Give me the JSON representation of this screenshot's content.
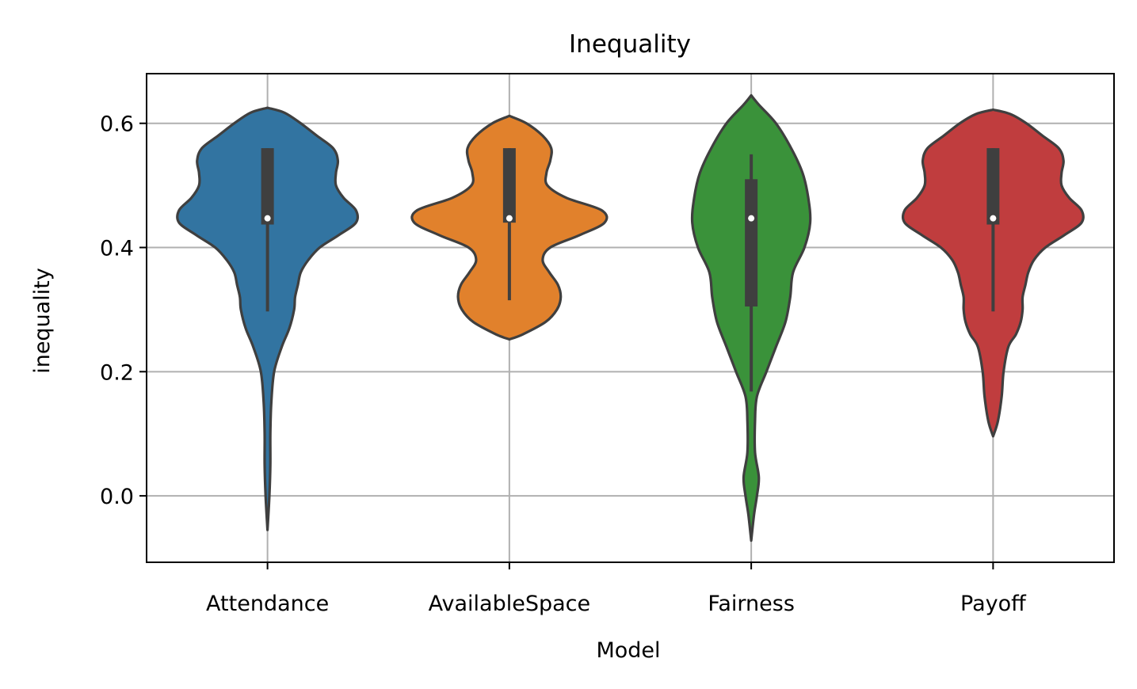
{
  "chart_data": {
    "type": "violin",
    "title": "Inequality",
    "xlabel": "Model",
    "ylabel": "inequality",
    "ylim": [
      -0.107,
      0.68
    ],
    "yticks": [
      "0.0",
      "0.2",
      "0.4",
      "0.6"
    ],
    "grid": true,
    "categories": [
      "Attendance",
      "AvailableSpace",
      "Fairness",
      "Payoff"
    ],
    "colors": [
      "#3274a1",
      "#e1812c",
      "#3a923a",
      "#c03d3e"
    ],
    "series": [
      {
        "category": "Attendance",
        "color": "#3274a1",
        "box": {
          "whisker_low": 0.297,
          "q1": 0.437,
          "median": 0.447,
          "q3": 0.56,
          "whisker_high": 0.56
        },
        "density": [
          [
            -0.055,
            0
          ],
          [
            0.0,
            0.02
          ],
          [
            0.05,
            0.03
          ],
          [
            0.1,
            0.03
          ],
          [
            0.15,
            0.04
          ],
          [
            0.2,
            0.07
          ],
          [
            0.24,
            0.15
          ],
          [
            0.27,
            0.23
          ],
          [
            0.3,
            0.28
          ],
          [
            0.32,
            0.29
          ],
          [
            0.34,
            0.32
          ],
          [
            0.36,
            0.35
          ],
          [
            0.38,
            0.43
          ],
          [
            0.4,
            0.55
          ],
          [
            0.42,
            0.75
          ],
          [
            0.44,
            0.93
          ],
          [
            0.46,
            0.93
          ],
          [
            0.48,
            0.8
          ],
          [
            0.5,
            0.72
          ],
          [
            0.52,
            0.72
          ],
          [
            0.54,
            0.74
          ],
          [
            0.56,
            0.69
          ],
          [
            0.58,
            0.52
          ],
          [
            0.6,
            0.35
          ],
          [
            0.617,
            0.18
          ],
          [
            0.625,
            0
          ]
        ]
      },
      {
        "category": "AvailableSpace",
        "color": "#e1812c",
        "box": {
          "whisker_low": 0.315,
          "q1": 0.44,
          "median": 0.447,
          "q3": 0.56,
          "whisker_high": 0.56
        },
        "density": [
          [
            0.252,
            0
          ],
          [
            0.26,
            0.14
          ],
          [
            0.28,
            0.38
          ],
          [
            0.3,
            0.5
          ],
          [
            0.32,
            0.54
          ],
          [
            0.34,
            0.51
          ],
          [
            0.36,
            0.42
          ],
          [
            0.38,
            0.35
          ],
          [
            0.4,
            0.43
          ],
          [
            0.42,
            0.74
          ],
          [
            0.44,
            1.0
          ],
          [
            0.46,
            0.97
          ],
          [
            0.48,
            0.6
          ],
          [
            0.5,
            0.4
          ],
          [
            0.52,
            0.39
          ],
          [
            0.54,
            0.43
          ],
          [
            0.56,
            0.44
          ],
          [
            0.58,
            0.35
          ],
          [
            0.6,
            0.18
          ],
          [
            0.612,
            0
          ]
        ]
      },
      {
        "category": "Fairness",
        "color": "#3a923a",
        "box": {
          "whisker_low": 0.168,
          "q1": 0.305,
          "median": 0.447,
          "q3": 0.51,
          "whisker_high": 0.55
        },
        "density": [
          [
            -0.072,
            0
          ],
          [
            -0.03,
            0.03
          ],
          [
            0.0,
            0.06
          ],
          [
            0.03,
            0.08
          ],
          [
            0.07,
            0.04
          ],
          [
            0.12,
            0.04
          ],
          [
            0.16,
            0.06
          ],
          [
            0.2,
            0.16
          ],
          [
            0.24,
            0.26
          ],
          [
            0.28,
            0.36
          ],
          [
            0.32,
            0.41
          ],
          [
            0.36,
            0.44
          ],
          [
            0.4,
            0.56
          ],
          [
            0.44,
            0.62
          ],
          [
            0.48,
            0.6
          ],
          [
            0.52,
            0.54
          ],
          [
            0.56,
            0.42
          ],
          [
            0.6,
            0.26
          ],
          [
            0.63,
            0.08
          ],
          [
            0.645,
            0
          ]
        ]
      },
      {
        "category": "Payoff",
        "color": "#c03d3e",
        "box": {
          "whisker_low": 0.297,
          "q1": 0.437,
          "median": 0.447,
          "q3": 0.56,
          "whisker_high": 0.56
        },
        "density": [
          [
            0.096,
            0
          ],
          [
            0.12,
            0.05
          ],
          [
            0.16,
            0.09
          ],
          [
            0.2,
            0.11
          ],
          [
            0.24,
            0.16
          ],
          [
            0.26,
            0.24
          ],
          [
            0.28,
            0.29
          ],
          [
            0.3,
            0.31
          ],
          [
            0.32,
            0.31
          ],
          [
            0.34,
            0.34
          ],
          [
            0.36,
            0.37
          ],
          [
            0.38,
            0.43
          ],
          [
            0.4,
            0.55
          ],
          [
            0.42,
            0.75
          ],
          [
            0.44,
            0.93
          ],
          [
            0.46,
            0.93
          ],
          [
            0.48,
            0.8
          ],
          [
            0.5,
            0.72
          ],
          [
            0.52,
            0.72
          ],
          [
            0.54,
            0.74
          ],
          [
            0.56,
            0.69
          ],
          [
            0.58,
            0.52
          ],
          [
            0.6,
            0.35
          ],
          [
            0.615,
            0.18
          ],
          [
            0.622,
            0
          ]
        ]
      }
    ]
  }
}
